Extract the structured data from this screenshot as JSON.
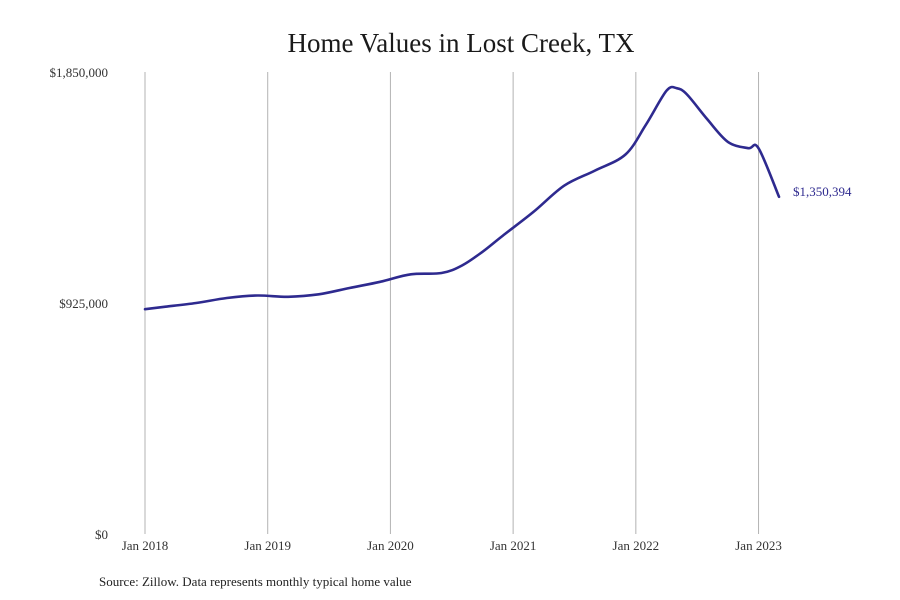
{
  "colors": {
    "line": "#2e2a8f",
    "grid": "#b3b3b3",
    "text": "#1a1a1a"
  },
  "source_note": "Source: Zillow. Data represents monthly typical home value",
  "chart_data": {
    "type": "line",
    "title": "Home Values in Lost Creek, TX",
    "xlabel": "",
    "ylabel": "",
    "ylim": [
      0,
      1850000
    ],
    "yticks": [
      0,
      925000,
      1850000
    ],
    "ytick_labels": [
      "$0",
      "$925,000",
      "$1,850,000"
    ],
    "xticks": [
      "2018-01",
      "2019-01",
      "2020-01",
      "2021-01",
      "2022-01",
      "2023-01"
    ],
    "xtick_labels": [
      "Jan 2018",
      "Jan 2019",
      "Jan 2020",
      "Jan 2021",
      "Jan 2022",
      "Jan 2023"
    ],
    "xlim": [
      "2018-01",
      "2023-03"
    ],
    "grid": "vertical at x ticks",
    "end_label": "$1,350,394",
    "series": [
      {
        "name": "",
        "x": [
          "2018-01",
          "2018-03",
          "2018-06",
          "2018-09",
          "2018-12",
          "2019-03",
          "2019-06",
          "2019-09",
          "2019-12",
          "2020-03",
          "2020-06",
          "2020-08",
          "2020-10",
          "2020-12",
          "2021-03",
          "2021-06",
          "2021-09",
          "2021-12",
          "2022-02",
          "2022-04",
          "2022-05",
          "2022-06",
          "2022-08",
          "2022-10",
          "2022-12",
          "2023-01",
          "2023-03"
        ],
        "y": [
          900000,
          910000,
          925000,
          945000,
          955000,
          950000,
          960000,
          985000,
          1010000,
          1040000,
          1045000,
          1075000,
          1130000,
          1195000,
          1290000,
          1395000,
          1455000,
          1520000,
          1640000,
          1775000,
          1785000,
          1760000,
          1660000,
          1570000,
          1545000,
          1545000,
          1350394
        ]
      }
    ]
  }
}
